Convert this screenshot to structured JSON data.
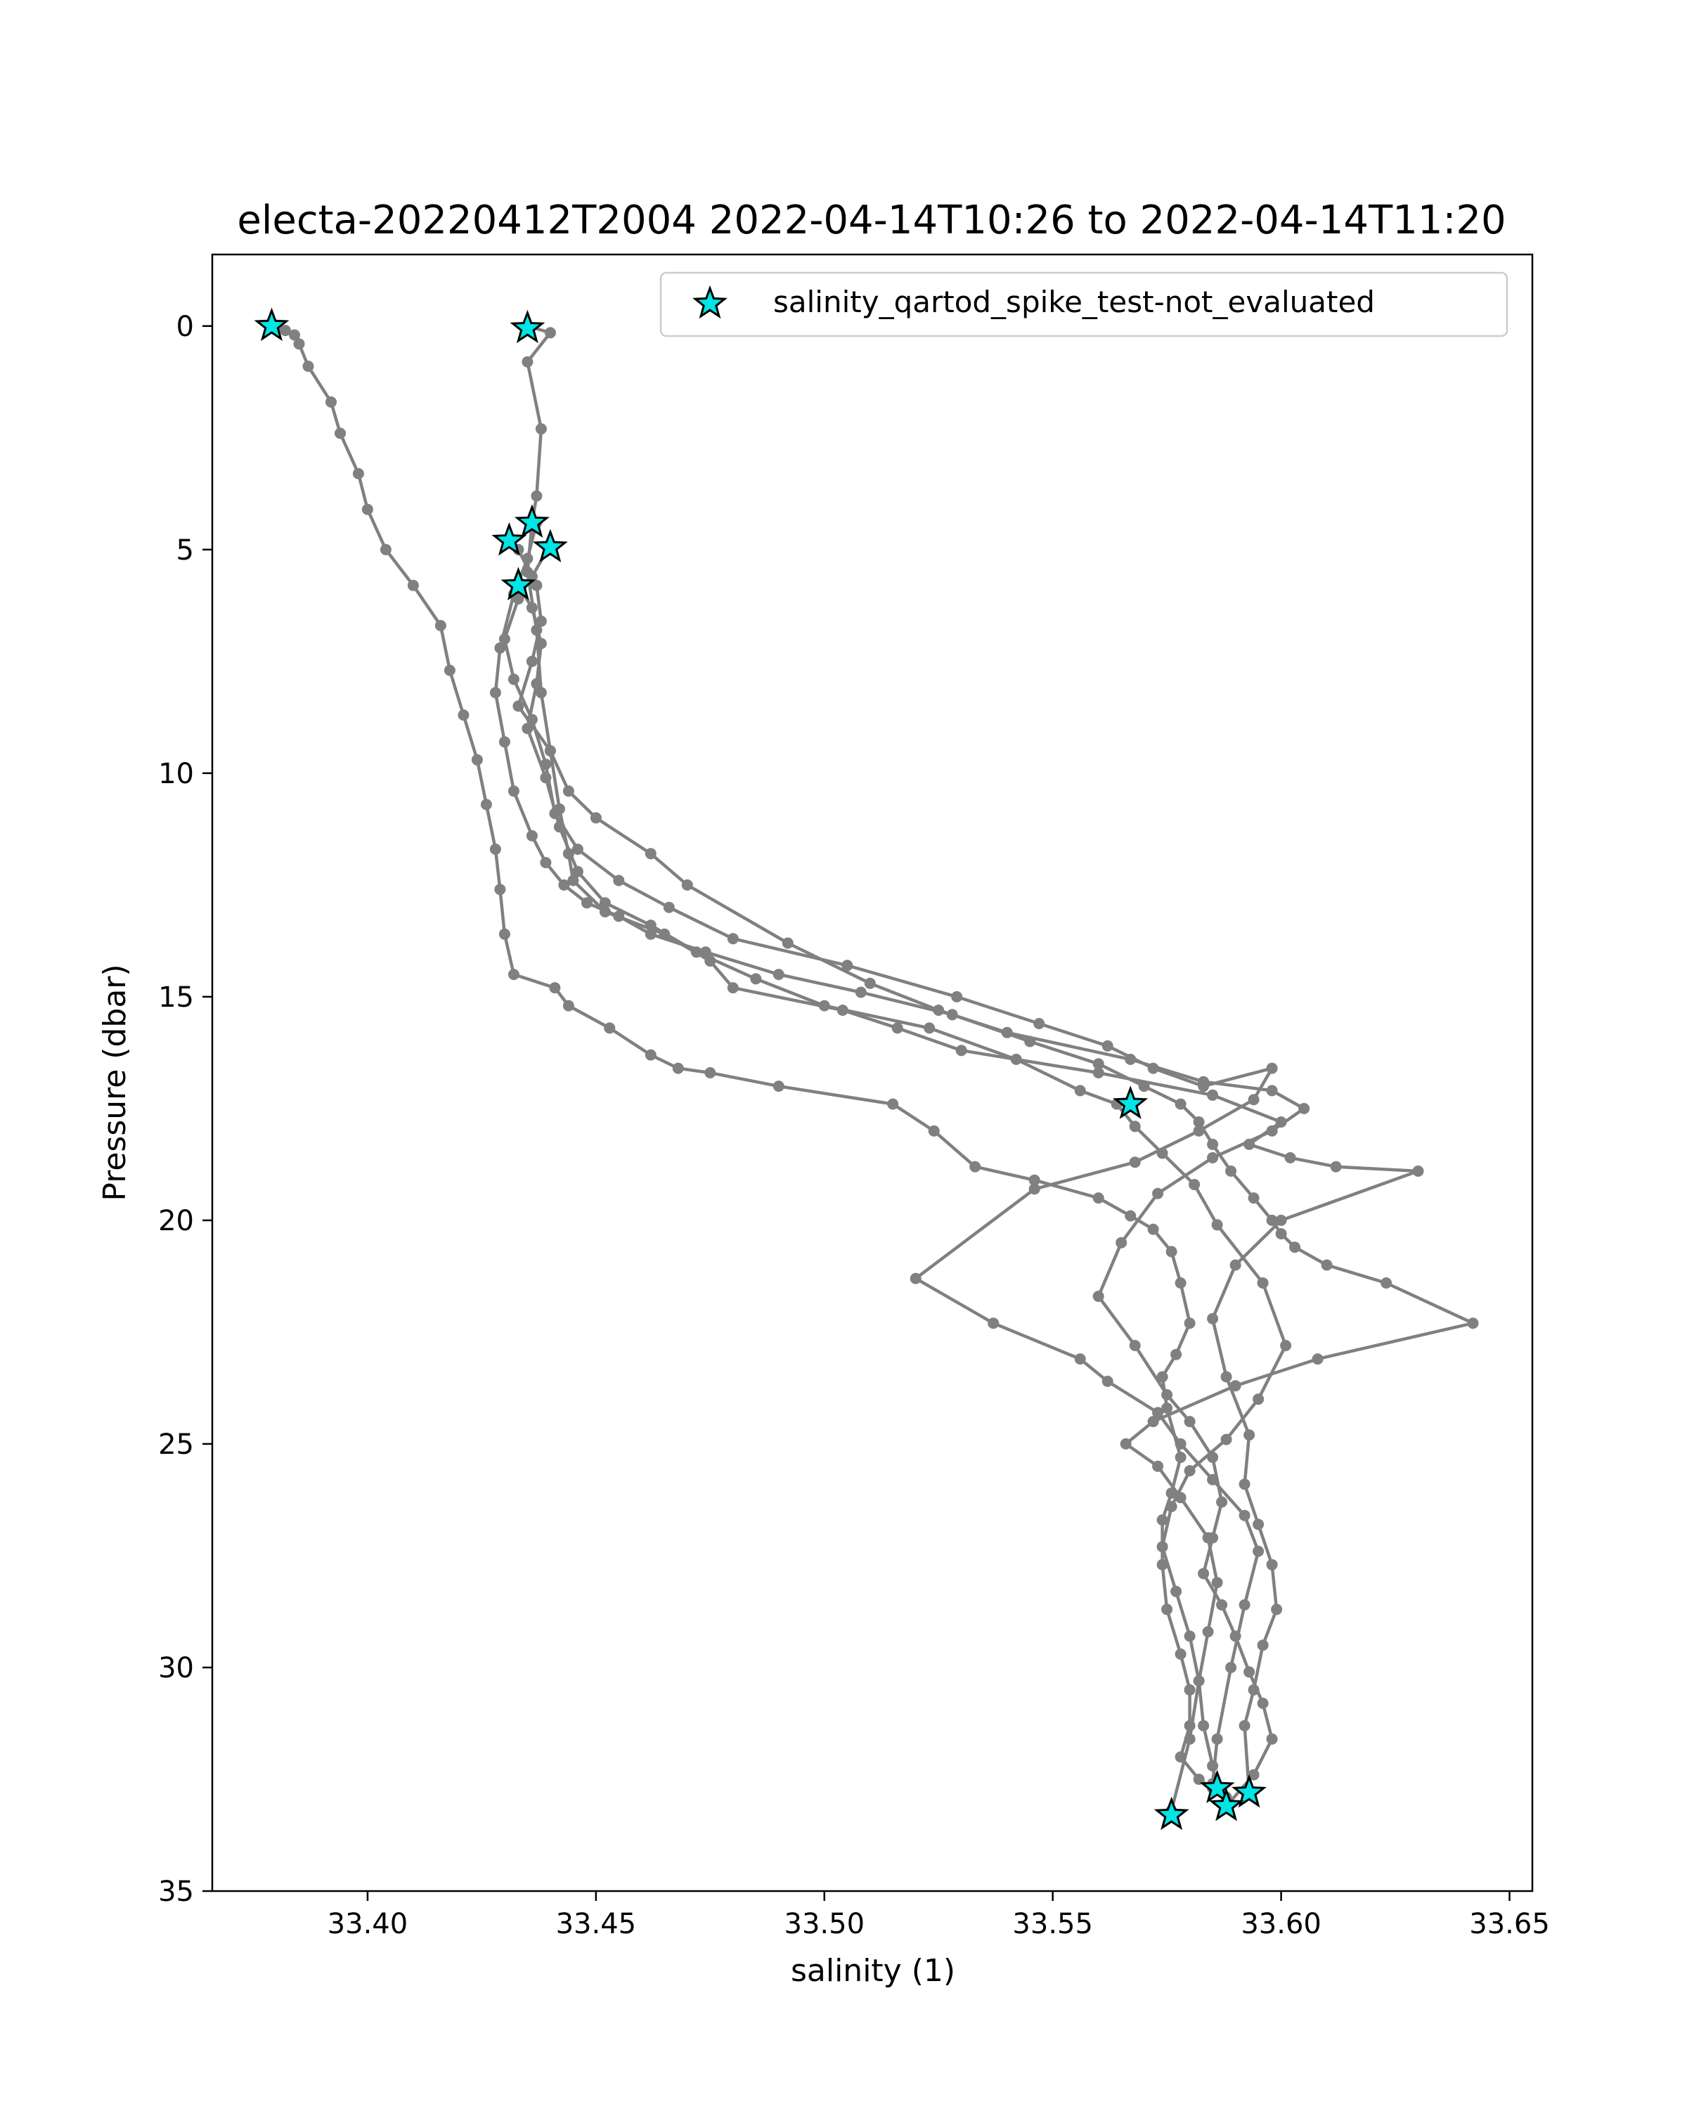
{
  "chart_data": {
    "type": "line",
    "title": "electa-20220412T2004 2022-04-14T10:26 to 2022-04-14T11:20",
    "xlabel": "salinity (1)",
    "ylabel": "Pressure (dbar)",
    "xlim": [
      33.366,
      33.655
    ],
    "ylim": [
      35,
      -1.6
    ],
    "y_inverted": true,
    "x_ticks": [
      "33.40",
      "33.45",
      "33.50",
      "33.55",
      "33.60",
      "33.65"
    ],
    "x_tick_values": [
      33.4,
      33.45,
      33.5,
      33.55,
      33.6,
      33.65
    ],
    "y_ticks": [
      "0",
      "5",
      "10",
      "15",
      "20",
      "25",
      "30",
      "35"
    ],
    "y_tick_values": [
      0,
      5,
      10,
      15,
      20,
      25,
      30,
      35
    ],
    "grid": false,
    "legend_position": "top-right",
    "colors": {
      "line": "#808080",
      "star_fill": "#00e5e5",
      "star_edge": "#000000"
    },
    "series": [
      {
        "x": [
          33.379,
          33.382,
          33.384,
          33.385,
          33.387,
          33.392,
          33.394,
          33.398,
          33.4,
          33.404,
          33.41,
          33.416,
          33.418,
          33.421,
          33.424,
          33.426,
          33.428,
          33.429,
          33.43,
          33.432,
          33.441,
          33.444,
          33.453,
          33.462,
          33.468,
          33.475,
          33.49,
          33.515,
          33.524,
          33.533,
          33.546,
          33.56,
          33.567,
          33.572,
          33.576,
          33.578,
          33.58,
          33.577,
          33.574,
          33.575,
          33.578,
          33.576,
          33.574,
          33.574,
          33.575,
          33.578,
          33.58,
          33.58,
          33.578,
          33.582,
          33.585,
          33.588,
          33.588
        ],
        "y": [
          0.0,
          0.1,
          0.2,
          0.4,
          0.9,
          1.7,
          2.4,
          3.3,
          4.1,
          5.0,
          5.8,
          6.7,
          7.7,
          8.7,
          9.7,
          10.7,
          11.7,
          12.6,
          13.6,
          14.5,
          14.8,
          15.2,
          15.7,
          16.3,
          16.6,
          16.7,
          17.0,
          17.4,
          18.0,
          18.8,
          19.1,
          19.5,
          19.9,
          20.2,
          20.7,
          21.4,
          22.3,
          23.0,
          23.5,
          24.2,
          25.3,
          26.1,
          26.7,
          27.7,
          28.7,
          29.7,
          30.5,
          31.3,
          32.0,
          32.5,
          32.7,
          32.9,
          33.1
        ]
      },
      {
        "x": [
          33.435,
          33.44,
          33.435,
          33.438,
          33.437,
          33.436,
          33.435,
          33.437,
          33.438,
          33.44,
          33.442,
          33.444,
          33.445,
          33.452,
          33.465,
          33.475,
          33.48,
          33.504,
          33.516,
          33.53,
          33.56,
          33.585,
          33.6,
          33.593,
          33.602,
          33.612,
          33.63,
          33.6,
          33.59,
          33.585,
          33.588,
          33.593,
          33.592,
          33.595,
          33.598,
          33.599,
          33.596,
          33.594,
          33.592,
          33.593
        ],
        "y": [
          0.0,
          0.15,
          0.8,
          2.3,
          3.8,
          4.4,
          5.5,
          6.8,
          8.2,
          9.5,
          10.8,
          11.8,
          12.4,
          13.1,
          13.6,
          14.2,
          14.8,
          15.3,
          15.7,
          16.2,
          16.7,
          17.2,
          17.8,
          18.3,
          18.6,
          18.8,
          18.9,
          20.0,
          21.0,
          22.2,
          23.5,
          24.8,
          25.9,
          26.8,
          27.7,
          28.7,
          29.5,
          30.5,
          31.3,
          32.8
        ]
      },
      {
        "x": [
          33.431,
          33.433,
          33.437,
          33.438,
          33.436,
          33.433,
          33.44,
          33.444,
          33.45,
          33.462,
          33.47,
          33.492,
          33.51,
          33.525,
          33.54,
          33.567,
          33.583,
          33.598,
          33.605,
          33.598,
          33.585,
          33.573,
          33.565,
          33.56,
          33.568,
          33.575,
          33.58,
          33.585,
          33.587,
          33.585,
          33.583,
          33.587,
          33.59,
          33.593,
          33.596,
          33.598,
          33.594,
          33.588
        ],
        "y": [
          4.8,
          5.0,
          5.8,
          6.6,
          7.5,
          8.5,
          9.5,
          10.4,
          11.0,
          11.8,
          12.5,
          13.8,
          14.7,
          15.3,
          15.8,
          16.4,
          16.9,
          17.1,
          17.5,
          18.0,
          18.6,
          19.4,
          20.5,
          21.7,
          22.8,
          23.9,
          24.5,
          25.3,
          26.3,
          27.1,
          27.9,
          28.6,
          29.3,
          30.1,
          30.8,
          31.6,
          32.4,
          33.1
        ]
      },
      {
        "x": [
          33.433,
          33.436,
          33.438,
          33.437,
          33.435,
          33.439,
          33.442,
          33.446,
          33.452,
          33.462,
          33.472,
          33.485,
          33.5,
          33.523,
          33.542,
          33.556,
          33.564,
          33.568,
          33.574,
          33.581,
          33.586,
          33.596,
          33.601,
          33.595,
          33.588,
          33.58,
          33.576,
          33.574,
          33.577,
          33.58,
          33.582,
          33.58,
          33.576
        ],
        "y": [
          5.8,
          6.3,
          7.1,
          8.0,
          9.0,
          10.1,
          11.2,
          12.2,
          12.9,
          13.4,
          14.0,
          14.6,
          15.2,
          15.7,
          16.4,
          17.1,
          17.4,
          17.9,
          18.5,
          19.2,
          20.1,
          21.4,
          22.8,
          24.0,
          24.9,
          25.6,
          26.4,
          27.3,
          28.3,
          29.3,
          30.3,
          31.6,
          33.2
        ]
      },
      {
        "x": [
          33.44,
          33.436,
          33.433,
          33.43,
          33.432,
          33.436,
          33.439,
          33.441,
          33.446,
          33.455,
          33.466,
          33.48,
          33.505,
          33.529,
          33.547,
          33.562,
          33.572,
          33.583,
          33.598,
          33.594,
          33.582,
          33.568,
          33.546,
          33.52,
          33.537,
          33.556,
          33.562,
          33.573,
          33.578,
          33.585,
          33.592,
          33.595,
          33.592,
          33.589,
          33.586,
          33.585
        ],
        "y": [
          4.9,
          5.6,
          6.1,
          7.0,
          7.9,
          8.8,
          9.8,
          10.9,
          11.7,
          12.4,
          13.0,
          13.7,
          14.3,
          15.0,
          15.6,
          16.1,
          16.6,
          17.0,
          16.6,
          17.3,
          18.0,
          18.7,
          19.3,
          21.3,
          22.3,
          23.1,
          23.6,
          24.3,
          25.0,
          25.8,
          26.6,
          27.4,
          28.6,
          30.0,
          31.6,
          32.6
        ]
      },
      {
        "x": [
          33.437,
          33.435,
          33.432,
          33.429,
          33.428,
          33.43,
          33.432,
          33.436,
          33.439,
          33.443,
          33.448,
          33.455,
          33.462,
          33.474,
          33.49,
          33.508,
          33.528,
          33.545,
          33.56,
          33.57,
          33.578,
          33.582,
          33.585,
          33.589,
          33.594,
          33.598,
          33.6,
          33.603,
          33.61,
          33.623,
          33.642,
          33.608,
          33.59,
          33.572,
          33.566,
          33.573,
          33.578,
          33.584,
          33.586,
          33.584,
          33.582,
          33.583,
          33.585,
          33.586
        ],
        "y": [
          4.4,
          5.2,
          6.0,
          7.2,
          8.2,
          9.3,
          10.4,
          11.4,
          12.0,
          12.5,
          12.9,
          13.2,
          13.6,
          14.0,
          14.5,
          14.9,
          15.4,
          16.0,
          16.5,
          17.0,
          17.4,
          17.8,
          18.3,
          18.9,
          19.5,
          20.0,
          20.3,
          20.6,
          21.0,
          21.4,
          22.3,
          23.1,
          23.7,
          24.5,
          25.0,
          25.5,
          26.2,
          27.1,
          28.1,
          29.2,
          30.3,
          31.3,
          32.2,
          32.7
        ]
      }
    ],
    "markers": {
      "name": "salinity_qartod_spike_test-not_evaluated",
      "x": [
        33.379,
        33.435,
        33.436,
        33.431,
        33.44,
        33.433,
        33.567,
        33.586,
        33.593,
        33.588,
        33.576
      ],
      "y": [
        0.0,
        0.05,
        4.4,
        4.8,
        4.95,
        5.8,
        17.4,
        32.7,
        32.8,
        33.1,
        33.3
      ]
    }
  }
}
